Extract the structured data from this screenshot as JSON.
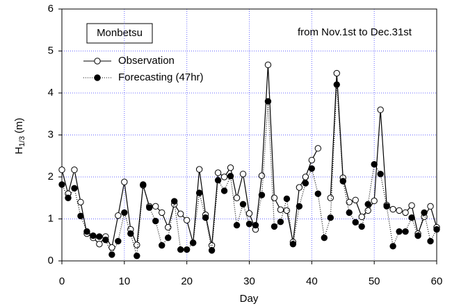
{
  "chart_data": {
    "type": "line",
    "x_label": "Day",
    "y_label": "H",
    "y_label_sub": "1/3",
    "y_label_unit": "(m)",
    "annotations": [
      "Monbetsu",
      "from Nov.1st to Dec.31st"
    ],
    "x": [
      0,
      1,
      2,
      3,
      4,
      5,
      6,
      7,
      8,
      9,
      10,
      11,
      12,
      13,
      14,
      15,
      16,
      17,
      18,
      19,
      20,
      21,
      22,
      23,
      24,
      25,
      26,
      27,
      28,
      29,
      30,
      31,
      32,
      33,
      34,
      35,
      36,
      37,
      38,
      39,
      40,
      41,
      42,
      43,
      44,
      45,
      46,
      47,
      48,
      49,
      50,
      51,
      52,
      53,
      54,
      55,
      56,
      57,
      58,
      59,
      60
    ],
    "series": [
      {
        "name": "Observation",
        "color": "#000000",
        "marker": "open",
        "line_style": "solid",
        "values": [
          2.17,
          1.6,
          2.17,
          1.4,
          0.65,
          0.55,
          0.4,
          0.58,
          0.32,
          1.08,
          1.88,
          0.75,
          0.38,
          1.8,
          1.3,
          1.3,
          1.15,
          0.8,
          1.35,
          1.12,
          0.97,
          0.43,
          2.18,
          1.1,
          0.37,
          2.1,
          2.0,
          2.22,
          1.5,
          2.07,
          1.13,
          0.75,
          2.03,
          4.67,
          1.5,
          1.22,
          1.2,
          0.45,
          1.75,
          2.0,
          2.4,
          2.68,
          null,
          1.5,
          4.47,
          1.98,
          1.4,
          1.45,
          1.05,
          1.2,
          1.43,
          3.6,
          1.33,
          1.23,
          1.2,
          1.15,
          1.32,
          0.65,
          1.05,
          1.3,
          0.8
        ]
      },
      {
        "name": "Forecasting (47hr)",
        "color": "#000000",
        "marker": "filled",
        "line_style": "dotted",
        "values": [
          1.82,
          1.5,
          1.73,
          1.07,
          0.7,
          0.6,
          0.58,
          0.5,
          0.15,
          0.47,
          1.15,
          0.65,
          0.12,
          1.82,
          1.27,
          0.95,
          0.37,
          0.55,
          1.42,
          0.27,
          0.27,
          0.43,
          1.62,
          1.03,
          0.25,
          1.92,
          1.67,
          2.02,
          0.85,
          1.35,
          0.88,
          0.85,
          1.57,
          3.8,
          0.82,
          0.93,
          1.48,
          0.4,
          1.3,
          1.85,
          2.2,
          1.6,
          0.55,
          1.03,
          4.2,
          1.9,
          1.15,
          0.92,
          0.82,
          1.35,
          2.3,
          2.07,
          1.3,
          0.35,
          0.7,
          0.7,
          1.03,
          0.6,
          1.15,
          0.47,
          0.75
        ]
      }
    ],
    "xlim": [
      0,
      60
    ],
    "xticks": [
      0,
      10,
      20,
      30,
      40,
      50,
      60
    ],
    "ylim": [
      0,
      6
    ],
    "yticks": [
      0,
      1,
      2,
      3,
      4,
      5,
      6
    ],
    "grid": true,
    "grid_color": "#6666ff",
    "legend": "upper left"
  }
}
